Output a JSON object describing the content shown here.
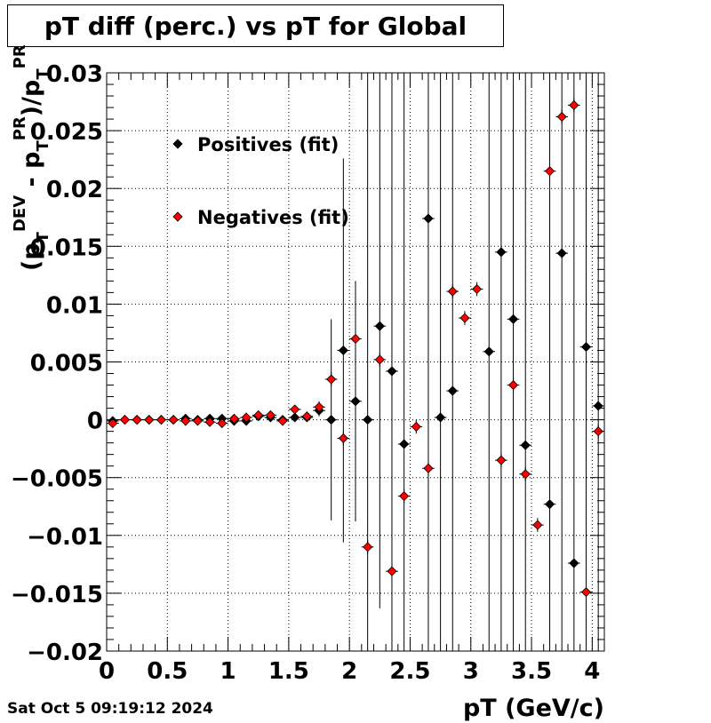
{
  "title": "pT diff (perc.) vs pT for Global",
  "timestamp": "Sat Oct  5 09:19:12 2024",
  "chart_data": {
    "type": "scatter",
    "title": "pT diff (perc.) vs pT for Global",
    "xlabel": "pT (GeV/c)",
    "ylabel": "(p_T^DEV - p_T^PR)/p_T^PR",
    "xlim": [
      0,
      4.1
    ],
    "ylim": [
      -0.02,
      0.03
    ],
    "grid": true,
    "legend_position": "top-left",
    "x_ticks": [
      "0",
      "0.5",
      "1",
      "1.5",
      "2",
      "2.5",
      "3",
      "3.5",
      "4"
    ],
    "y_ticks": [
      "−0.02",
      "−0.015",
      "−0.01",
      "−0.005",
      "0",
      "0.005",
      "0.01",
      "0.015",
      "0.02",
      "0.025",
      "0.03"
    ],
    "x": [
      0.05,
      0.15,
      0.25,
      0.35,
      0.45,
      0.55,
      0.65,
      0.75,
      0.85,
      0.95,
      1.05,
      1.15,
      1.25,
      1.35,
      1.45,
      1.55,
      1.65,
      1.75,
      1.85,
      1.95,
      2.05,
      2.15,
      2.25,
      2.35,
      2.45,
      2.55,
      2.65,
      2.75,
      2.85,
      2.95,
      3.05,
      3.15,
      3.25,
      3.35,
      3.45,
      3.55,
      3.65,
      3.75,
      3.85,
      3.95,
      4.05
    ],
    "series": [
      {
        "name": "Positives (fit)",
        "color": "#000000",
        "values": [
          -0.0001,
          0.0,
          0.0,
          0.0,
          0.0,
          0.0,
          0.0001,
          0.0,
          0.0001,
          0.0001,
          -0.0001,
          -0.0001,
          0.0003,
          0.0002,
          0.0,
          0.0002,
          0.0002,
          0.0008,
          0.0,
          0.006,
          0.0016,
          0.0,
          0.0081,
          0.0042,
          -0.0021,
          null,
          0.0174,
          0.0002,
          0.0025,
          null,
          null,
          0.0059,
          0.0145,
          0.0087,
          -0.0022,
          null,
          -0.0073,
          0.0144,
          -0.0124,
          0.0063,
          0.0012
        ],
        "errors": [
          0.0001,
          0.0001,
          0.0001,
          0.0001,
          0.0001,
          0.0001,
          0.0001,
          0.0001,
          0.0001,
          0.0001,
          0.0002,
          0.0002,
          0.0002,
          0.0002,
          0.0002,
          0.0003,
          0.0003,
          0.0005,
          0.0087,
          0.0166,
          0.0104,
          0.05,
          0.0244,
          0.05,
          0.05,
          null,
          0.05,
          0.05,
          0.05,
          null,
          null,
          0.05,
          0.05,
          0.05,
          0.05,
          null,
          0.05,
          0.05,
          0.05,
          0.05,
          0.05
        ]
      },
      {
        "name": "Negatives (fit)",
        "color": "#ff0000",
        "values": [
          -0.0003,
          0.0,
          0.0,
          0.0,
          0.0,
          0.0,
          -0.0001,
          -0.0001,
          -0.0002,
          -0.0003,
          0.0001,
          0.0002,
          0.0004,
          0.0004,
          -0.0001,
          0.0009,
          0.0003,
          0.0011,
          0.0035,
          -0.0016,
          0.007,
          -0.011,
          0.0052,
          -0.0131,
          -0.0066,
          -0.0006,
          -0.0042,
          null,
          0.0111,
          0.0088,
          0.0113,
          null,
          -0.0035,
          0.003,
          -0.0047,
          -0.0091,
          0.0215,
          0.0262,
          0.0272,
          -0.0149,
          -0.001
        ],
        "errors": [
          0.0001,
          0.0001,
          0.0001,
          0.0001,
          0.0001,
          0.0001,
          0.0001,
          0.0001,
          0.0001,
          0.0001,
          0.0002,
          0.0002,
          0.0002,
          0.0002,
          0.0002,
          0.0003,
          0.0003,
          0.0005,
          0.0006,
          0.0006,
          0.0006,
          0.0006,
          0.0006,
          0.0006,
          0.0006,
          0.0006,
          0.0006,
          null,
          0.0006,
          0.0006,
          0.0006,
          null,
          0.0006,
          0.0006,
          0.0006,
          0.0006,
          0.0006,
          0.0006,
          0.0006,
          0.0006,
          0.0006
        ]
      }
    ]
  }
}
